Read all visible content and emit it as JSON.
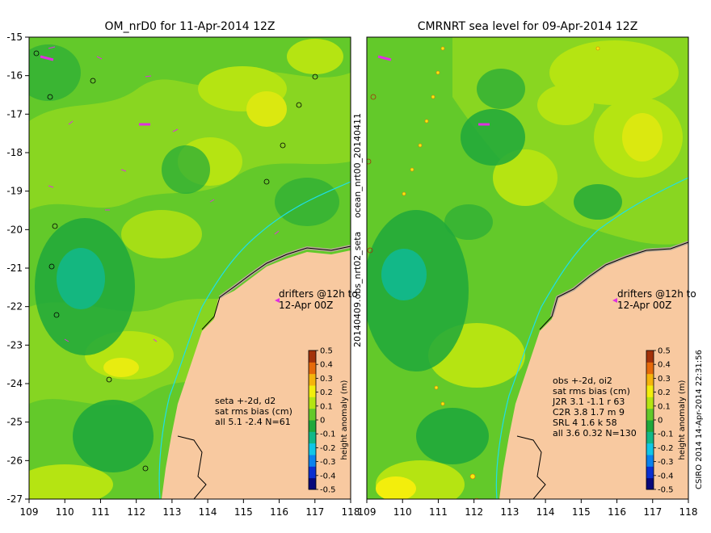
{
  "panels": [
    {
      "title": "OM_nrD0 for 11-Apr-2014 12Z",
      "drifters_line1": "drifters @12h to",
      "drifters_line2": "12-Apr 00Z",
      "stats": [
        "seta +-2d, d2",
        "sat rms bias (cm)",
        "all 5.1 -2.4 N=61"
      ]
    },
    {
      "title": "CMRNRT sea level  for 09-Apr-2014 12Z",
      "drifters_line1": "drifters @12h to",
      "drifters_line2": "12-Apr 00Z",
      "stats": [
        "obs +-2d, oi2",
        "sat rms bias (cm)",
        "J2R   3.1  -1.1  r 63",
        "C2R   3.8  1.7  m 9",
        "SRL   4  1.6  k 58",
        "all   3.6  0.32  N=130"
      ]
    }
  ],
  "axes": {
    "x_ticks": [
      "109",
      "110",
      "111",
      "112",
      "113",
      "114",
      "115",
      "116",
      "117",
      "118"
    ],
    "y_ticks": [
      "-15",
      "-16",
      "-17",
      "-18",
      "-19",
      "-20",
      "-21",
      "-22",
      "-23",
      "-24",
      "-25",
      "-26",
      "-27"
    ]
  },
  "colorbar": {
    "label": "height anomaly (m)",
    "ticks": [
      "0.5",
      "0.4",
      "0.3",
      "0.2",
      "0.1",
      "0",
      "-0.1",
      "-0.2",
      "-0.3",
      "-0.4",
      "-0.5"
    ],
    "colors": [
      "#08087a",
      "#0b2fd0",
      "#0a82ee",
      "#11c6e6",
      "#12b888",
      "#1fa83b",
      "#63c92a",
      "#b5e412",
      "#f3ee0c",
      "#f5b40c",
      "#e66a0a",
      "#a3320a"
    ]
  },
  "side_labels": {
    "middle": "20140409.obs_nrt02_seta",
    "middle_top": "ocean_nrt00_20140411",
    "right": "CSIRO 2014  14-Apr-2014 22:31:56"
  },
  "colors": {
    "land": "#f8c9a0",
    "coast_fill": "#b8a898",
    "coast_line": "#1ee0e8",
    "drifter": "#e030e0"
  }
}
